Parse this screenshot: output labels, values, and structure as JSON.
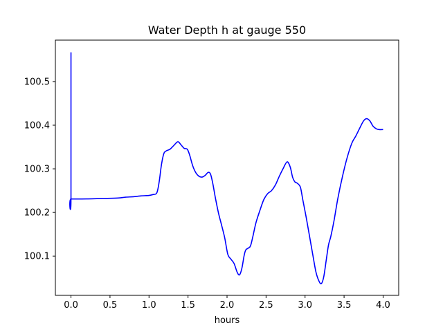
{
  "chart_data": {
    "type": "line",
    "title": "Water Depth h at gauge 550",
    "xlabel": "hours",
    "ylabel": "",
    "xlim": [
      -0.2,
      4.2
    ],
    "ylim": [
      100.01,
      100.595
    ],
    "xticks": [
      0.0,
      0.5,
      1.0,
      1.5,
      2.0,
      2.5,
      3.0,
      3.5,
      4.0
    ],
    "xtick_labels": [
      "0.0",
      "0.5",
      "1.0",
      "1.5",
      "2.0",
      "2.5",
      "3.0",
      "3.5",
      "4.0"
    ],
    "yticks": [
      100.1,
      100.2,
      100.3,
      100.4,
      100.5
    ],
    "ytick_labels": [
      "100.1",
      "100.2",
      "100.3",
      "100.4",
      "100.5"
    ],
    "grid": false,
    "series": [
      {
        "color": "#0000ff",
        "x": [
          0.0,
          0.0,
          0.0,
          0.2,
          0.4,
          0.6,
          0.7,
          0.8,
          0.9,
          1.0,
          1.05,
          1.1,
          1.13,
          1.16,
          1.19,
          1.22,
          1.27,
          1.32,
          1.37,
          1.41,
          1.45,
          1.49,
          1.52,
          1.56,
          1.6,
          1.64,
          1.68,
          1.72,
          1.76,
          1.79,
          1.82,
          1.85,
          1.89,
          1.93,
          1.97,
          2.01,
          2.05,
          2.09,
          2.13,
          2.16,
          2.19,
          2.22,
          2.24,
          2.27,
          2.3,
          2.33,
          2.37,
          2.42,
          2.47,
          2.52,
          2.57,
          2.62,
          2.67,
          2.72,
          2.77,
          2.81,
          2.84,
          2.87,
          2.9,
          2.94,
          2.97,
          3.01,
          3.05,
          3.1,
          3.14,
          3.18,
          3.21,
          3.24,
          3.27,
          3.3,
          3.33,
          3.37,
          3.42,
          3.48,
          3.54,
          3.6,
          3.65,
          3.7,
          3.75,
          3.79,
          3.83,
          3.87,
          3.91,
          3.95,
          4.0
        ],
        "y": [
          100.567,
          100.232,
          100.231,
          100.231,
          100.232,
          100.233,
          100.235,
          100.236,
          100.238,
          100.239,
          100.241,
          100.245,
          100.27,
          100.31,
          100.335,
          100.341,
          100.345,
          100.354,
          100.362,
          100.355,
          100.347,
          100.345,
          100.332,
          100.307,
          100.291,
          100.283,
          100.281,
          100.285,
          100.292,
          100.287,
          100.264,
          100.234,
          100.199,
          100.171,
          100.142,
          100.104,
          100.093,
          100.083,
          100.063,
          100.057,
          100.072,
          100.102,
          100.114,
          100.118,
          100.123,
          100.144,
          100.176,
          100.204,
          100.229,
          100.243,
          100.25,
          100.263,
          100.283,
          100.301,
          100.316,
          100.304,
          100.281,
          100.27,
          100.267,
          100.258,
          100.23,
          100.193,
          100.153,
          100.102,
          100.063,
          100.042,
          100.037,
          100.053,
          100.089,
          100.125,
          100.145,
          100.18,
          100.232,
          100.283,
          100.326,
          100.359,
          100.375,
          100.393,
          100.41,
          100.415,
          100.41,
          100.398,
          100.392,
          100.39,
          100.39
        ]
      }
    ]
  }
}
